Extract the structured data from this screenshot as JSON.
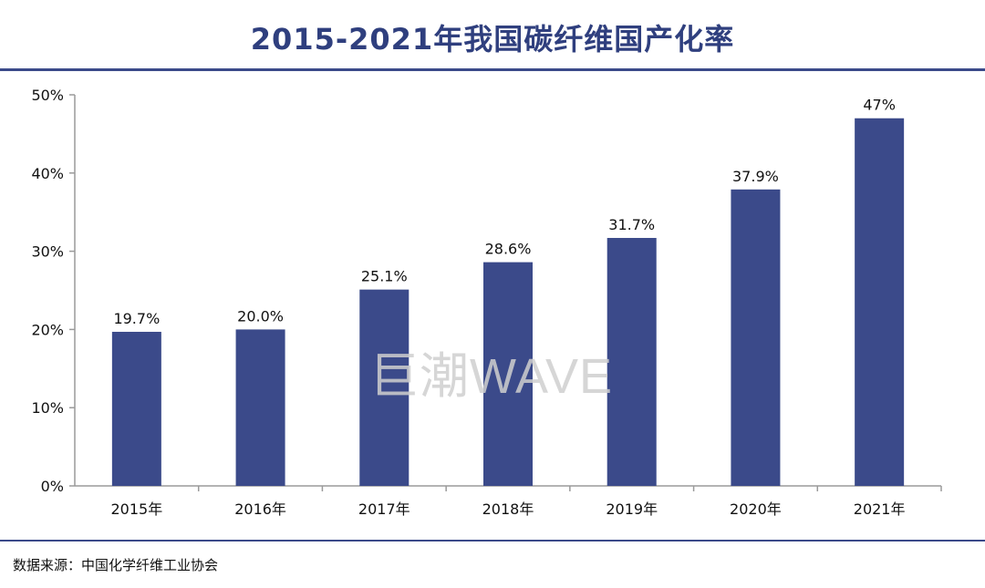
{
  "title": "2015-2021年我国碳纤维国产化率",
  "source": "数据来源：中国化学纤维工业协会",
  "watermark": "巨潮WAVE",
  "colors": {
    "bar": "#3b4a8a",
    "title": "#2f3f7e",
    "rule": "#3b4a8a",
    "axis": "#9a9a9a"
  },
  "chart_data": {
    "type": "bar",
    "categories": [
      "2015年",
      "2016年",
      "2017年",
      "2018年",
      "2019年",
      "2020年",
      "2021年"
    ],
    "values": [
      19.7,
      20.0,
      25.1,
      28.6,
      31.7,
      37.9,
      47
    ],
    "data_labels": [
      "19.7%",
      "20.0%",
      "25.1%",
      "28.6%",
      "31.7%",
      "37.9%",
      "47%"
    ],
    "yticks": [
      "0%",
      "10%",
      "20%",
      "30%",
      "40%",
      "50%"
    ],
    "ylim": [
      0,
      50
    ],
    "title": "2015-2021年我国碳纤维国产化率",
    "xlabel": "",
    "ylabel": "",
    "grid": false,
    "legend": "none"
  }
}
